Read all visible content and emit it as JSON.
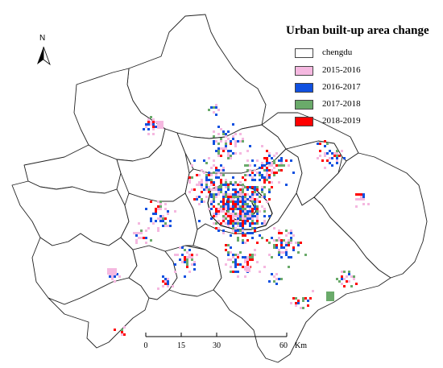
{
  "legend": {
    "title": "Urban built-up area change",
    "items": [
      {
        "label": "chengdu",
        "color": "#ffffff"
      },
      {
        "label": "2015-2016",
        "color": "#f5b8e0"
      },
      {
        "label": "2016-2017",
        "color": "#1050e0"
      },
      {
        "label": "2017-2018",
        "color": "#6aaa6a"
      },
      {
        "label": "2018-2019",
        "color": "#ff0000"
      }
    ]
  },
  "north_arrow": {
    "label": "N"
  },
  "scale_bar": {
    "ticks": [
      "0",
      "15",
      "30",
      "60"
    ],
    "unit": "Km"
  }
}
